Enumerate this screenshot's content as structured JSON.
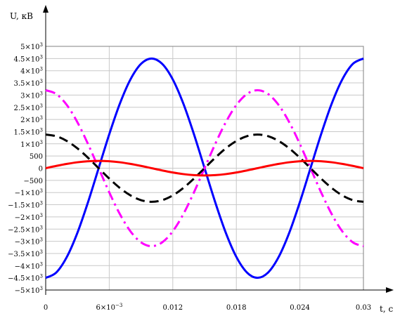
{
  "chart_data": {
    "type": "line",
    "xlabel": "t, с",
    "ylabel": "U, кВ",
    "xlim": [
      0,
      0.03
    ],
    "ylim": [
      -5000,
      5000
    ],
    "grid": true,
    "x_ticks": [
      {
        "value": 0,
        "label": "0"
      },
      {
        "value": 0.006,
        "label": "6×10",
        "exp": "−3"
      },
      {
        "value": 0.012,
        "label": "0.012"
      },
      {
        "value": 0.018,
        "label": "0.018"
      },
      {
        "value": 0.024,
        "label": "0.024"
      },
      {
        "value": 0.03,
        "label": "0.03"
      }
    ],
    "y_ticks": [
      {
        "value": 5000,
        "label": "5×10",
        "exp": "3"
      },
      {
        "value": 4500,
        "label": "4.5×10",
        "exp": "3"
      },
      {
        "value": 4000,
        "label": "4×10",
        "exp": "3"
      },
      {
        "value": 3500,
        "label": "3.5×10",
        "exp": "3"
      },
      {
        "value": 3000,
        "label": "3×10",
        "exp": "3"
      },
      {
        "value": 2500,
        "label": "2.5×10",
        "exp": "3"
      },
      {
        "value": 2000,
        "label": "2×10",
        "exp": "3"
      },
      {
        "value": 1500,
        "label": "1.5×10",
        "exp": "3"
      },
      {
        "value": 1000,
        "label": "1×10",
        "exp": "3"
      },
      {
        "value": 500,
        "label": "500"
      },
      {
        "value": 0,
        "label": "0"
      },
      {
        "value": -500,
        "label": "−500"
      },
      {
        "value": -1000,
        "label": "−1×10",
        "exp": "3"
      },
      {
        "value": -1500,
        "label": "−1.5×10",
        "exp": "3"
      },
      {
        "value": -2000,
        "label": "−2×10",
        "exp": "3"
      },
      {
        "value": -2500,
        "label": "−2.5×10",
        "exp": "3"
      },
      {
        "value": -3000,
        "label": "−3×10",
        "exp": "3"
      },
      {
        "value": -3500,
        "label": "−3.5×10",
        "exp": "3"
      },
      {
        "value": -4000,
        "label": "−4×10",
        "exp": "3"
      },
      {
        "value": -4500,
        "label": "−4.5×10",
        "exp": "3"
      },
      {
        "value": -5000,
        "label": "−5×10",
        "exp": "3"
      }
    ],
    "series": [
      {
        "color": "#0000ff",
        "style": "solid",
        "x": [
          0,
          0.001,
          0.002,
          0.003,
          0.004,
          0.005,
          0.006,
          0.007,
          0.008,
          0.009,
          0.01,
          0.011,
          0.012,
          0.013,
          0.014,
          0.015,
          0.016,
          0.017,
          0.018,
          0.019,
          0.02,
          0.021,
          0.022,
          0.023,
          0.024,
          0.025,
          0.026,
          0.027,
          0.028,
          0.029,
          0.03
        ],
        "values": [
          -4500,
          -4280,
          -3640,
          -2645,
          -1390,
          0,
          1390,
          2645,
          3640,
          4280,
          4500,
          4280,
          3640,
          2645,
          1390,
          0,
          -1390,
          -2645,
          -3640,
          -4280,
          -4500,
          -4280,
          -3640,
          -2645,
          -1390,
          0,
          1390,
          2645,
          3640,
          4280,
          4500
        ]
      },
      {
        "color": "#ff00ff",
        "style": "dashdot",
        "x": [
          0,
          0.001,
          0.002,
          0.003,
          0.004,
          0.005,
          0.006,
          0.007,
          0.008,
          0.009,
          0.01,
          0.011,
          0.012,
          0.013,
          0.014,
          0.015,
          0.016,
          0.017,
          0.018,
          0.019,
          0.02,
          0.021,
          0.022,
          0.023,
          0.024,
          0.025,
          0.026,
          0.027,
          0.028,
          0.029,
          0.03
        ],
        "values": [
          3200,
          3043,
          2589,
          1881,
          989,
          0,
          -989,
          -1881,
          -2589,
          -3043,
          -3200,
          -3043,
          -2589,
          -1881,
          -989,
          0,
          989,
          1881,
          2589,
          3043,
          3200,
          3043,
          2589,
          1881,
          989,
          0,
          -989,
          -1881,
          -2589,
          -3043,
          -3200
        ]
      },
      {
        "color": "#000000",
        "style": "dashed",
        "x": [
          0,
          0.001,
          0.002,
          0.003,
          0.004,
          0.005,
          0.006,
          0.007,
          0.008,
          0.009,
          0.01,
          0.011,
          0.012,
          0.013,
          0.014,
          0.015,
          0.016,
          0.017,
          0.018,
          0.019,
          0.02,
          0.021,
          0.022,
          0.023,
          0.024,
          0.025,
          0.026,
          0.027,
          0.028,
          0.029,
          0.03
        ],
        "values": [
          1380,
          1312,
          1116,
          811,
          426,
          0,
          -426,
          -811,
          -1116,
          -1312,
          -1380,
          -1312,
          -1116,
          -811,
          -426,
          0,
          426,
          811,
          1116,
          1312,
          1380,
          1312,
          1116,
          811,
          426,
          0,
          -426,
          -811,
          -1116,
          -1312,
          -1380
        ]
      },
      {
        "color": "#ff0000",
        "style": "solid",
        "x": [
          0,
          0.001,
          0.002,
          0.003,
          0.004,
          0.005,
          0.006,
          0.007,
          0.008,
          0.009,
          0.01,
          0.011,
          0.012,
          0.013,
          0.014,
          0.015,
          0.016,
          0.017,
          0.018,
          0.019,
          0.02,
          0.021,
          0.022,
          0.023,
          0.024,
          0.025,
          0.026,
          0.027,
          0.028,
          0.029,
          0.03
        ],
        "values": [
          0,
          93,
          176,
          243,
          285,
          300,
          285,
          243,
          176,
          93,
          0,
          -93,
          -176,
          -243,
          -285,
          -300,
          -285,
          -243,
          -176,
          -93,
          0,
          93,
          176,
          243,
          285,
          300,
          285,
          243,
          176,
          93,
          0
        ]
      }
    ]
  }
}
